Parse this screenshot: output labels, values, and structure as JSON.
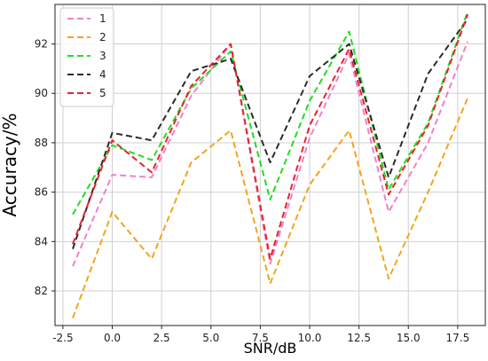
{
  "chart_data": {
    "type": "line",
    "xlabel": "SNR/dB",
    "ylabel": "Accuracy/%",
    "x": [
      -2,
      0,
      2,
      4,
      6,
      8,
      10,
      12,
      14,
      16,
      18
    ],
    "xlim": [
      -2.9,
      18.9
    ],
    "ylim": [
      80.6,
      93.6
    ],
    "xticks": [
      -2.5,
      0.0,
      2.5,
      5.0,
      7.5,
      10.0,
      12.5,
      15.0,
      17.5
    ],
    "xtick_labels": [
      "-2.5",
      "0.0",
      "2.5",
      "5.0",
      "7.5",
      "10.0",
      "12.5",
      "15.0",
      "17.5"
    ],
    "yticks": [
      82,
      84,
      86,
      88,
      90,
      92
    ],
    "ytick_labels": [
      "82",
      "84",
      "86",
      "88",
      "90",
      "92"
    ],
    "grid": true,
    "legend_position": "top-left",
    "line_style": "dashed",
    "series": [
      {
        "name": "1",
        "color": "#ee82c9",
        "values": [
          83.0,
          86.7,
          86.6,
          89.9,
          92.0,
          83.1,
          88.2,
          91.6,
          85.2,
          88.0,
          92.1
        ]
      },
      {
        "name": "2",
        "color": "#f4a41c",
        "values": [
          80.9,
          85.2,
          83.3,
          87.2,
          88.5,
          82.3,
          86.3,
          88.5,
          82.5,
          86.0,
          89.8
        ]
      },
      {
        "name": "3",
        "color": "#22dd22",
        "values": [
          85.1,
          87.9,
          87.3,
          90.2,
          91.7,
          85.7,
          89.7,
          92.5,
          86.1,
          88.8,
          93.3
        ]
      },
      {
        "name": "4",
        "color": "#2b2b2b",
        "values": [
          83.7,
          88.4,
          88.1,
          90.9,
          91.4,
          87.2,
          90.7,
          92.0,
          86.6,
          90.8,
          93.0
        ]
      },
      {
        "name": "5",
        "color": "#e8232d",
        "values": [
          83.9,
          88.1,
          86.8,
          90.3,
          92.0,
          83.3,
          88.7,
          91.8,
          85.9,
          88.7,
          93.2
        ]
      }
    ]
  }
}
